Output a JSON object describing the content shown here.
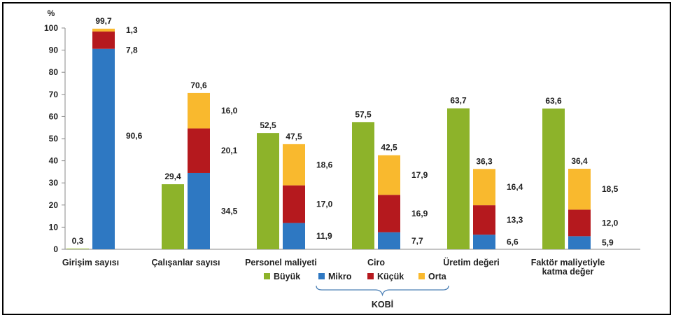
{
  "chart_data": {
    "type": "bar",
    "stacked": true,
    "ylabel": "%",
    "ylim": [
      0,
      100
    ],
    "yticks": [
      0,
      10,
      20,
      30,
      40,
      50,
      60,
      70,
      80,
      90,
      100
    ],
    "categories": [
      [
        "Girişim sayısı"
      ],
      [
        "Çalışanlar sayısı"
      ],
      [
        "Personel maliyeti"
      ],
      [
        "Ciro"
      ],
      [
        "Üretim değeri"
      ],
      [
        "Faktör maliyetiyle",
        "katma değer"
      ]
    ],
    "buyuk": {
      "name": "Büyük",
      "color": "#8db32a",
      "values": [
        0.3,
        29.4,
        52.5,
        57.5,
        63.7,
        63.6
      ],
      "labels": [
        "0,3",
        "29,4",
        "52,5",
        "57,5",
        "63,7",
        "63,6"
      ]
    },
    "kobi_series": [
      {
        "name": "Mikro",
        "color": "#2e78c2",
        "values": [
          90.6,
          34.5,
          11.9,
          7.7,
          6.6,
          5.9
        ],
        "labels": [
          "90,6",
          "34,5",
          "11,9",
          "7,7",
          "6,6",
          "5,9"
        ]
      },
      {
        "name": "Küçük",
        "color": "#b5191e",
        "values": [
          7.8,
          20.1,
          17.0,
          16.9,
          13.3,
          12.0
        ],
        "labels": [
          "7,8",
          "20,1",
          "17,0",
          "16,9",
          "13,3",
          "12,0"
        ]
      },
      {
        "name": "Orta",
        "color": "#f9b92e",
        "values": [
          1.3,
          16.0,
          18.6,
          17.9,
          16.4,
          18.5
        ],
        "labels": [
          "1,3",
          "16,0",
          "18,6",
          "17,9",
          "16,4",
          "18,5"
        ]
      }
    ],
    "kobi_totals": [
      99.7,
      70.6,
      47.5,
      42.5,
      36.3,
      36.4
    ],
    "kobi_total_labels": [
      "99,7",
      "70,6",
      "47,5",
      "42,5",
      "36,3",
      "36,4"
    ],
    "legend": [
      "Büyük",
      "Mikro",
      "Küçük",
      "Orta"
    ],
    "legend_group_label": "KOBİ",
    "grid": false
  }
}
